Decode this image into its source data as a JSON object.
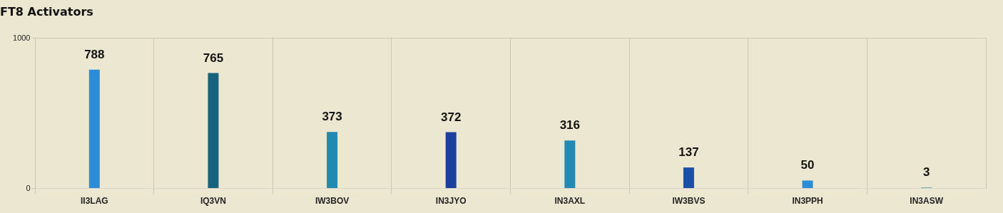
{
  "chart_data": {
    "type": "bar",
    "title": "FT8 Activators",
    "categories": [
      "II3LAG",
      "IQ3VN",
      "IW3BOV",
      "IN3JYO",
      "IN3AXL",
      "IW3BVS",
      "IN3PPH",
      "IN3ASW"
    ],
    "values": [
      788,
      765,
      373,
      372,
      316,
      137,
      50,
      3
    ],
    "colors": [
      "#2b8cd8",
      "#17627e",
      "#2289b3",
      "#1c3f9c",
      "#2289b3",
      "#1c4fa8",
      "#2b8cd8",
      "#2289b3"
    ],
    "ylim": [
      0,
      1000
    ],
    "yticks": [
      0,
      1000
    ],
    "grid": true,
    "data_labels": true
  }
}
